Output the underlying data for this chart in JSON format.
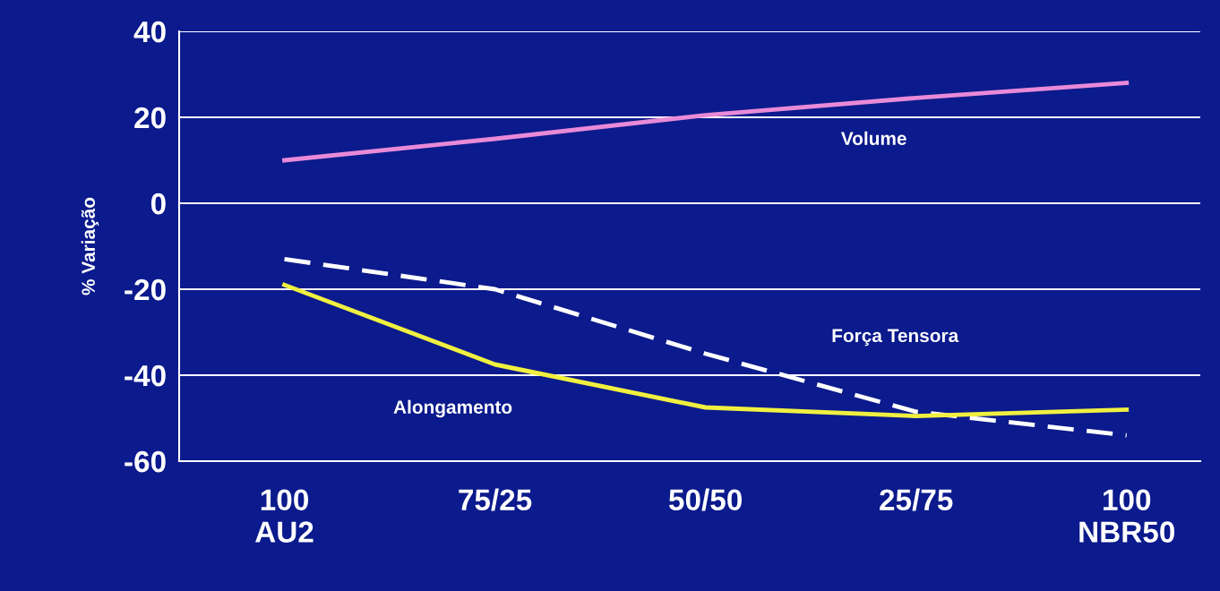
{
  "chart_data": {
    "type": "line",
    "ylabel": "% Variação",
    "categories": [
      "100\nAU2",
      "75/25",
      "50/50",
      "25/75",
      "100\nNBR50"
    ],
    "series": [
      {
        "name": "Volume",
        "color": "#e88ad8",
        "line_style": "solid",
        "values": [
          10,
          15,
          20.5,
          24.5,
          28
        ]
      },
      {
        "name": "Força Tensora",
        "color": "#ffffff",
        "line_style": "dashed",
        "values": [
          -13,
          -20,
          -35,
          -48.5,
          -54
        ]
      },
      {
        "name": "Alongamento",
        "color": "#f0f040",
        "line_style": "solid",
        "values": [
          -19,
          -37.5,
          -47.5,
          -49.5,
          -48
        ]
      }
    ],
    "ylim": [
      -60,
      40
    ],
    "yticks": [
      -60,
      -40,
      -20,
      0,
      20,
      40
    ],
    "grid": "y",
    "legend": false,
    "marker": "none"
  }
}
